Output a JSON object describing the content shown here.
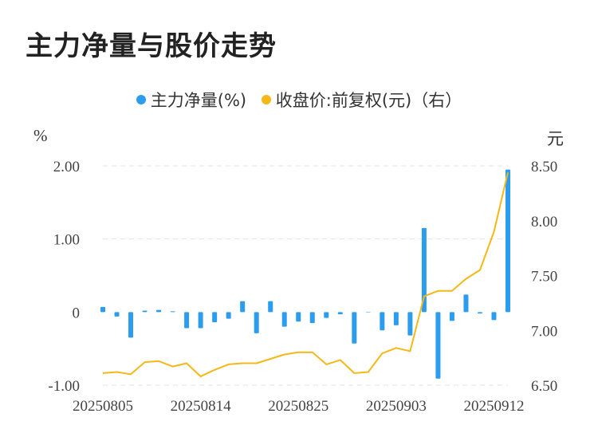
{
  "title": "主力净量与股价走势",
  "legend": {
    "net_flow": "主力净量(%)",
    "price": "收盘价:前复权(元)（右）"
  },
  "colors": {
    "bar": "#2b9cee",
    "line": "#f4b819",
    "grid": "#e3e3e3",
    "text": "#444444"
  },
  "chart_data": {
    "type": "bar+line",
    "title": "主力净量与股价走势",
    "left_unit": "%",
    "right_unit": "元",
    "left_ticks": [
      "2.00",
      "1.00",
      "0",
      "-1.00"
    ],
    "left_tick_values": [
      2.0,
      1.0,
      0,
      -1.0
    ],
    "right_ticks": [
      "8.50",
      "8.00",
      "7.50",
      "7.00",
      "6.50"
    ],
    "right_tick_values": [
      8.5,
      8.0,
      7.5,
      7.0,
      6.5
    ],
    "ylim_left": [
      -1.0,
      2.0
    ],
    "ylim_right": [
      6.5,
      8.5
    ],
    "x_tick_labels": [
      {
        "index": 0,
        "label": "20250805"
      },
      {
        "index": 7,
        "label": "20250814"
      },
      {
        "index": 14,
        "label": "20250825"
      },
      {
        "index": 21,
        "label": "20250903"
      },
      {
        "index": 28,
        "label": "20250912"
      }
    ],
    "series": [
      {
        "name": "主力净量(%)",
        "type": "bar",
        "axis": "left",
        "values": [
          0.07,
          -0.06,
          -0.35,
          0.02,
          0.03,
          0.01,
          -0.22,
          -0.22,
          -0.14,
          -0.09,
          0.15,
          -0.29,
          0.15,
          -0.2,
          -0.13,
          -0.15,
          -0.08,
          -0.03,
          -0.43,
          0.0,
          -0.25,
          -0.18,
          -0.32,
          1.15,
          -0.91,
          -0.12,
          0.24,
          -0.02,
          -0.11,
          1.95
        ]
      },
      {
        "name": "收盘价:前复权(元)（右）",
        "type": "line",
        "axis": "right",
        "values": [
          6.61,
          6.62,
          6.6,
          6.71,
          6.72,
          6.67,
          6.7,
          6.58,
          6.64,
          6.69,
          6.7,
          6.7,
          6.74,
          6.78,
          6.8,
          6.8,
          6.69,
          6.73,
          6.61,
          6.62,
          6.79,
          6.84,
          6.81,
          7.31,
          7.36,
          7.36,
          7.47,
          7.55,
          7.9,
          8.44
        ]
      }
    ]
  }
}
